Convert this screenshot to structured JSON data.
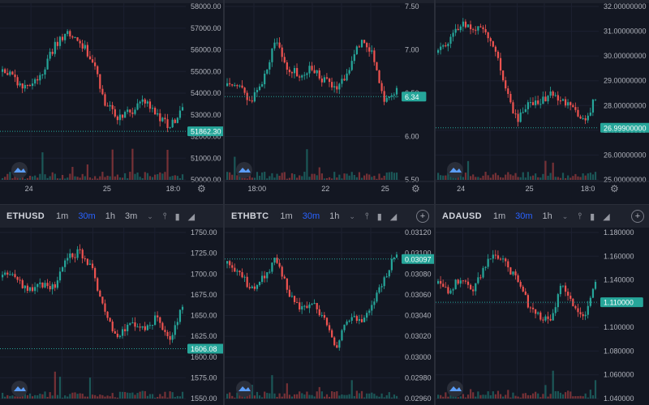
{
  "colors": {
    "bg": "#131722",
    "up": "#26a69a",
    "down": "#ef5350",
    "toolbar": "#1e222d",
    "accent": "#2962ff"
  },
  "toolbars": [
    {
      "symbol": "ETHUSD",
      "timeframes": [
        "1m",
        "30m",
        "1h",
        "3m"
      ],
      "active": "30m"
    },
    {
      "symbol": "ETHBTC",
      "timeframes": [
        "1m",
        "30m",
        "1h"
      ],
      "active": "30m"
    },
    {
      "symbol": "ADAUSD",
      "timeframes": [
        "1m",
        "30m",
        "1h"
      ],
      "active": "30m"
    }
  ],
  "panes": [
    {
      "id": "top-left",
      "axis": [
        "58000.00",
        "57000.00",
        "56000.00",
        "55000.00",
        "54000.00",
        "53000.00",
        "52000.00",
        "51000.00",
        "50000.00"
      ],
      "last_price": "51862.30",
      "last_color": "#26a69a",
      "time_labels": [
        "24",
        "25",
        "18:0"
      ]
    },
    {
      "id": "top-mid",
      "axis": [
        "7.50",
        "7.00",
        "6.50",
        "6.00",
        "5.50"
      ],
      "last_price": "6.34",
      "last_color": "#26a69a",
      "time_labels": [
        "18:00",
        "22",
        "25"
      ]
    },
    {
      "id": "top-right",
      "axis": [
        "32.00000000",
        "31.00000000",
        "30.00000000",
        "29.00000000",
        "28.00000000",
        "27.00000000",
        "26.00000000",
        "25.00000000"
      ],
      "last_price": "26.99900000",
      "last_color": "#26a69a",
      "time_labels": [
        "24",
        "25",
        "18:0"
      ]
    },
    {
      "id": "bottom-left",
      "axis": [
        "1750.00",
        "1725.00",
        "1700.00",
        "1675.00",
        "1650.00",
        "1625.00",
        "1600.00",
        "1575.00",
        "1550.00"
      ],
      "last_price": "1606.08",
      "last_color": "#26a69a"
    },
    {
      "id": "bottom-mid",
      "axis": [
        "0.03120",
        "0.03100",
        "0.03080",
        "0.03060",
        "0.03040",
        "0.03020",
        "0.03000",
        "0.02980",
        "0.02960"
      ],
      "last_price": "0.03097",
      "last_color": "#26a69a"
    },
    {
      "id": "bottom-right",
      "axis": [
        "1.180000",
        "1.160000",
        "1.140000",
        "1.120000",
        "1.100000",
        "1.080000",
        "1.060000",
        "1.040000"
      ],
      "last_price": "1.110000",
      "last_color": "#26a69a"
    }
  ]
}
